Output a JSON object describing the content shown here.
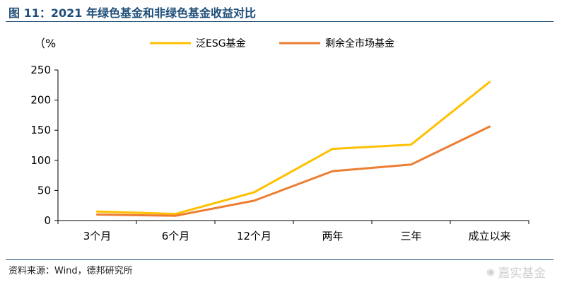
{
  "figure": {
    "title": "图 11：2021 年绿色基金和非绿色基金收益对比",
    "source": "资料来源：Wind，德邦研究所",
    "watermark": "嘉实基金"
  },
  "colors": {
    "title": "#1f4e79",
    "series_esg": "#ffc000",
    "series_rest": "#ed7d31",
    "axis": "#000000"
  },
  "chart_data": {
    "type": "line",
    "ylabel": "（%",
    "categories": [
      "3个月",
      "6个月",
      "12个月",
      "两年",
      "三年",
      "成立以来"
    ],
    "series": [
      {
        "name": "泛ESG基金",
        "values": [
          15,
          11,
          47,
          119,
          126,
          230
        ]
      },
      {
        "name": "剩余全市场基金",
        "values": [
          10,
          8,
          33,
          82,
          93,
          156
        ]
      }
    ],
    "ylim": [
      0,
      250
    ],
    "yticks": [
      0,
      50,
      100,
      150,
      200,
      250
    ],
    "grid": false,
    "legend_position": "top-center"
  }
}
